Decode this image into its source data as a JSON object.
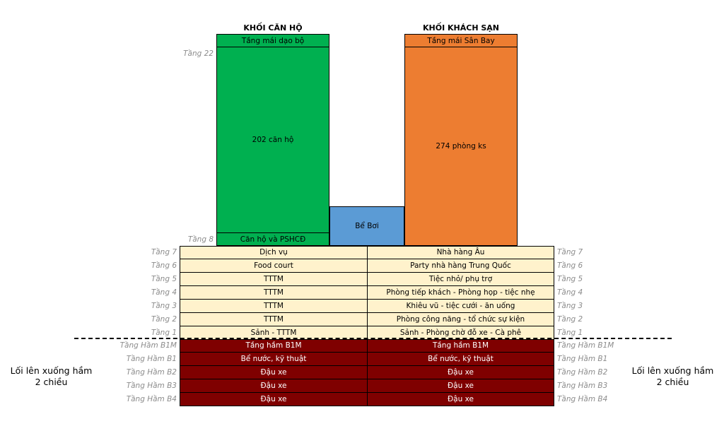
{
  "blocks": {
    "apartment": {
      "title": "KHỐI CĂN HỘ",
      "roof": "Tầng mái dạo bộ",
      "main": "202 căn hộ",
      "bottom": "Căn hộ và PSHCĐ",
      "color": "#00b050"
    },
    "hotel": {
      "title": "KHỐI KHÁCH SẠN",
      "roof": "Tầng mái Sân Bay",
      "main": "274 phòng ks",
      "color": "#ed7d31"
    },
    "pool": {
      "label": "Bể Bơi",
      "color": "#5b9bd5"
    }
  },
  "tower_floors": {
    "top": "Tầng 22",
    "bottom": "Tầng 8"
  },
  "podium": {
    "color": "#fff2cc",
    "rows": [
      {
        "floor": "Tầng 7",
        "left": "Dịch vụ",
        "right": "Nhà hàng Âu"
      },
      {
        "floor": "Tầng 6",
        "left": "Food court",
        "right": "Party nhà hàng Trung Quốc"
      },
      {
        "floor": "Tầng 5",
        "left": "TTTM",
        "right": "Tiệc nhỏ/ phụ trợ"
      },
      {
        "floor": "Tầng 4",
        "left": "TTTM",
        "right": "Phòng tiếp khách - Phòng họp - tiệc nhẹ"
      },
      {
        "floor": "Tầng 3",
        "left": "TTTM",
        "right": "Khiêu vũ - tiệc cưới - ăn uống"
      },
      {
        "floor": "Tầng 2",
        "left": "TTTM",
        "right": "Phòng công năng - tổ chức sự kiện"
      },
      {
        "floor": "Tầng 1",
        "left": "Sảnh - TTTM",
        "right": "Sảnh - Phòng chờ đỗ xe - Cà phê"
      }
    ]
  },
  "basement": {
    "color": "#7f0000",
    "rows": [
      {
        "floor": "Tầng Hầm B1M",
        "left": "Tầng hầm B1M",
        "right": "Tầng hầm B1M"
      },
      {
        "floor": "Tầng Hầm B1",
        "left": "Bể nước, kỹ thuật",
        "right": "Bể nước, kỹ thuật"
      },
      {
        "floor": "Tầng Hầm B2",
        "left": "Đậu xe",
        "right": "Đậu xe"
      },
      {
        "floor": "Tầng Hầm B3",
        "left": "Đậu xe",
        "right": "Đậu xe"
      },
      {
        "floor": "Tầng Hầm B4",
        "left": "Đậu xe",
        "right": "Đậu xe"
      }
    ]
  },
  "ramp": {
    "line1": "Lối lên xuống hầm",
    "line2": "2 chiều"
  }
}
